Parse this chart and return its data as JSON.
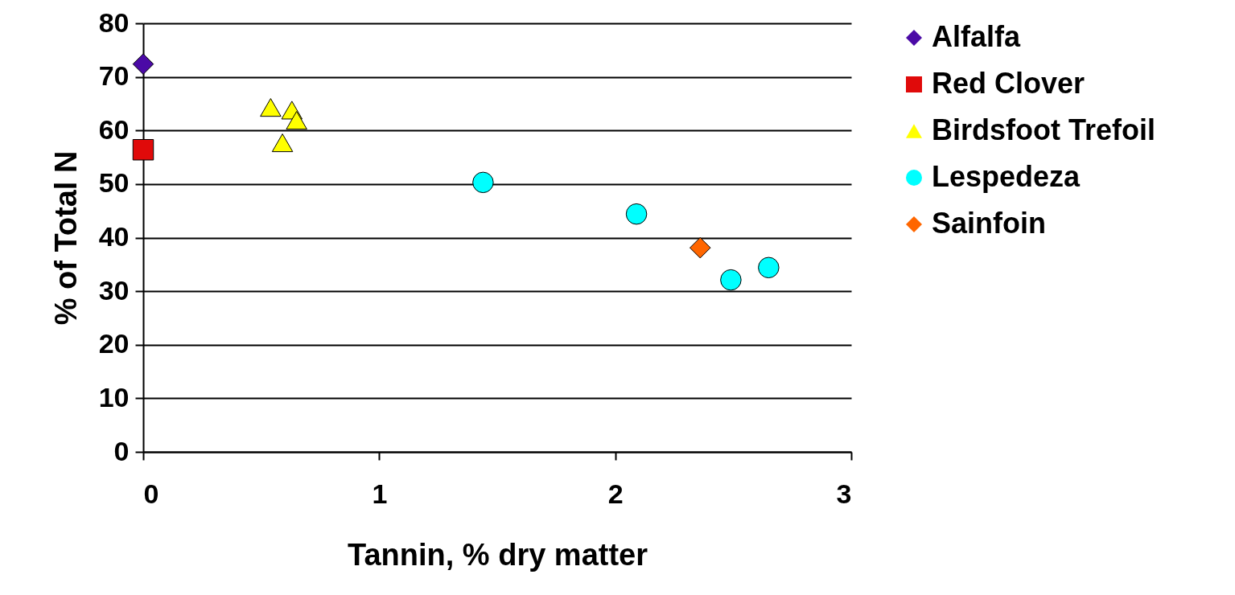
{
  "chart_data": {
    "type": "scatter",
    "xlabel": "Tannin, % dry matter",
    "ylabel": "% of Total N",
    "xlim": [
      0,
      3
    ],
    "xticks": [
      0,
      1,
      2,
      3
    ],
    "ylim": [
      0,
      80
    ],
    "yticks": [
      0,
      10,
      20,
      30,
      40,
      50,
      60,
      70,
      80
    ],
    "grid": "y",
    "legend": "right",
    "series": [
      {
        "name": "Alfalfa",
        "color": "#4b0aa6",
        "marker": "diamond",
        "x": [
          0
        ],
        "values": [
          72.4
        ]
      },
      {
        "name": "Red Clover",
        "color": "#e00a0a",
        "marker": "square",
        "x": [
          0
        ],
        "values": [
          56.4
        ]
      },
      {
        "name": "Birdsfoot Trefoil",
        "color": "#ffff00",
        "marker": "triangle",
        "x": [
          0.54,
          0.63,
          0.65,
          0.59
        ],
        "values": [
          64.3,
          63.8,
          61.9,
          57.7
        ]
      },
      {
        "name": "Lespedeza",
        "color": "#00ffff",
        "marker": "circle",
        "x": [
          1.44,
          2.09,
          2.49,
          2.65
        ],
        "values": [
          50.3,
          44.4,
          32.1,
          34.4
        ]
      },
      {
        "name": "Sainfoin",
        "color": "#ff6600",
        "marker": "diamond",
        "x": [
          2.36
        ],
        "values": [
          38.1
        ]
      }
    ]
  }
}
